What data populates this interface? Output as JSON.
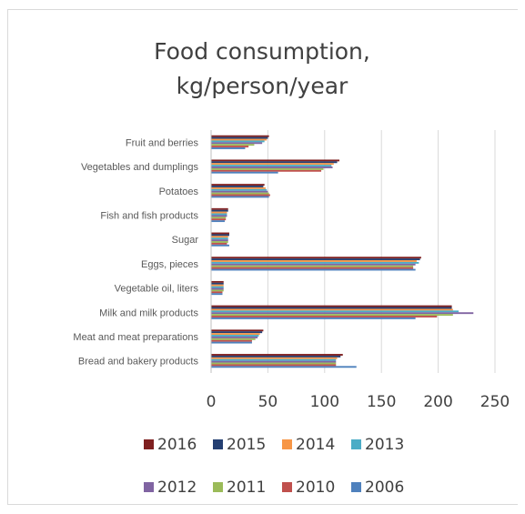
{
  "chart_data": {
    "type": "bar",
    "orientation": "horizontal",
    "title": [
      "Food consumption,",
      "kg/person/year"
    ],
    "categories": [
      "Bread and bakery products",
      "Meat and meat preparations",
      "Milk and milk products",
      "Vegetable oil, liters",
      "Eggs, pieces",
      "Sugar",
      "Fish and fish products",
      "Potatoes",
      "Vegetables and dumplings",
      "Fruit and berries"
    ],
    "series": [
      {
        "name": "2016",
        "color": "#7f2020",
        "values": [
          116,
          46,
          212,
          11,
          185,
          16,
          15,
          47,
          113,
          51
        ]
      },
      {
        "name": "2015",
        "color": "#243f72",
        "values": [
          114,
          45,
          212,
          11,
          184,
          16,
          15,
          46,
          111,
          50
        ]
      },
      {
        "name": "2014",
        "color": "#f79646",
        "values": [
          111,
          43,
          213,
          11,
          181,
          15,
          14,
          48,
          108,
          49
        ]
      },
      {
        "name": "2013",
        "color": "#4bacc6",
        "values": [
          110,
          42,
          218,
          11,
          183,
          15,
          14,
          49,
          106,
          47
        ]
      },
      {
        "name": "2012",
        "color": "#8064a2",
        "values": [
          110,
          41,
          231,
          11,
          180,
          15,
          14,
          50,
          107,
          45
        ]
      },
      {
        "name": "2011",
        "color": "#9bbb59",
        "values": [
          110,
          39,
          213,
          11,
          178,
          15,
          13,
          51,
          99,
          38
        ]
      },
      {
        "name": "2010",
        "color": "#c0504d",
        "values": [
          110,
          36,
          199,
          10,
          178,
          14,
          13,
          52,
          97,
          33
        ]
      },
      {
        "name": "2006",
        "color": "#4f81bd",
        "values": [
          128,
          36,
          180,
          10,
          180,
          16,
          12,
          51,
          59,
          30
        ]
      }
    ],
    "xticks": [
      0,
      50,
      100,
      150,
      200,
      250
    ],
    "xlim": [
      0,
      250
    ],
    "legend_position": "bottom",
    "legend_rows": [
      [
        "2016",
        "2015",
        "2014",
        "2013"
      ],
      [
        "2012",
        "2011",
        "2010",
        "2006"
      ]
    ]
  }
}
